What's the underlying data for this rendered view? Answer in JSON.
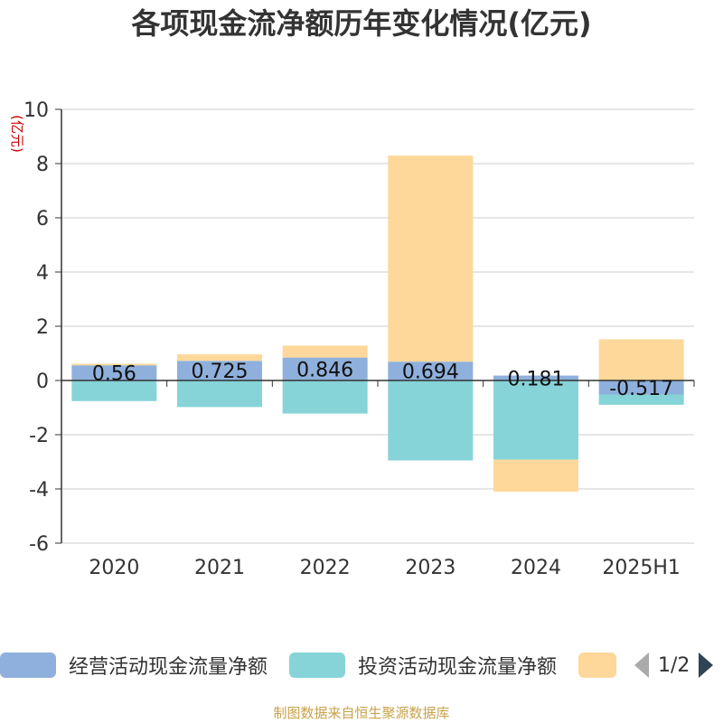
{
  "chart_data": {
    "type": "bar",
    "stacked": true,
    "title": "各项现金流净额历年变化情况(亿元)",
    "ylabel": "(亿元)",
    "ylim": [
      -6,
      10
    ],
    "yticks": [
      -6,
      -4,
      -2,
      0,
      2,
      4,
      6,
      8,
      10
    ],
    "grid": true,
    "legend_position": "bottom",
    "categories": [
      "2020",
      "2021",
      "2022",
      "2023",
      "2024",
      "2025H1"
    ],
    "series": [
      {
        "name": "经营活动现金流量净额",
        "color": "#8fb0dc",
        "values": [
          0.56,
          0.725,
          0.846,
          0.694,
          0.181,
          -0.517
        ],
        "labels": [
          "0.56",
          "0.725",
          "0.846",
          "0.694",
          "0.181",
          "-0.517"
        ]
      },
      {
        "name": "投资活动现金流量净额",
        "color": "#86d4d8",
        "values": [
          -0.76,
          -0.98,
          -1.22,
          -2.95,
          -2.92,
          -0.38
        ]
      },
      {
        "name": "",
        "color": "#fdd89a",
        "values": [
          0.06,
          0.24,
          0.44,
          7.6,
          -1.18,
          1.52
        ]
      }
    ]
  },
  "legend": {
    "items": [
      "经营活动现金流量净额",
      "投资活动现金流量净额",
      ""
    ],
    "page_indicator": "1/2"
  },
  "footer": {
    "source": "制图数据来自恒生聚源数据库"
  }
}
